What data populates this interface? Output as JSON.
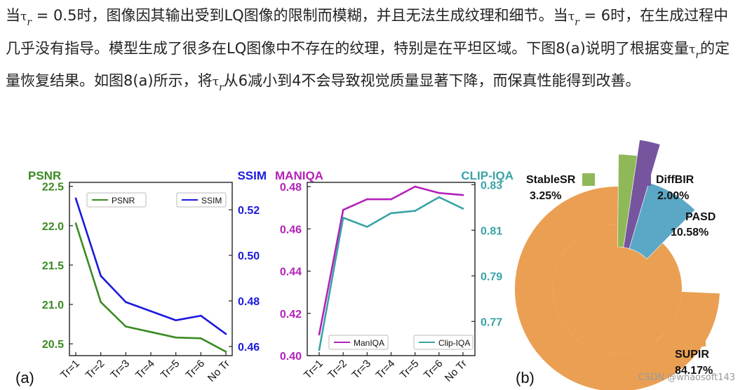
{
  "paragraph": {
    "p1": "当",
    "p2": " = 0.5时，图像因其输出受到LQ图像的限制而模糊，并且无法生成纹理和细节。当",
    "p3": " = 6时，在生成过程中几乎没有指导。模型生成了很多在LQ图像中不存在的纹理，特别是在平坦区域。下图8(a)说明了根据变量",
    "p4": "的定量恢复结果。如图8(a)所示，将",
    "p5": "从6减小到4不会导致视觉质量显著下降，而保真性能得到改善。",
    "tau_symbol": "τ",
    "tau_sub": "r"
  },
  "figure_labels": {
    "a": "(a)",
    "b": "(b)"
  },
  "watermark": "CSDN @whaosoft143",
  "colors": {
    "psnr": "#3a8a22",
    "ssim": "#1a1adc",
    "maniqa": "#b321b8",
    "clipiqa": "#3aa3a6",
    "stablesr": "#8fb858",
    "diffbir": "#76559e",
    "pasd": "#5ba7c6",
    "supir_outer": "#ea9f53",
    "supir_inner": "#cf8a45"
  },
  "chart_data": [
    {
      "type": "line",
      "panel": "(a) left",
      "categories": [
        "Tr=1",
        "Tr=2",
        "Tr=3",
        "Tr=4",
        "Tr=5",
        "Tr=6",
        "No Tr"
      ],
      "left_axis": {
        "title": "PSNR",
        "ylim": [
          20.35,
          22.55
        ],
        "ticks": [
          "20.5",
          "21.0",
          "21.5",
          "22.0",
          "22.5"
        ]
      },
      "right_axis": {
        "title": "SSIM",
        "ylim": [
          0.456,
          0.532
        ],
        "ticks": [
          "0.46",
          "0.48",
          "0.50",
          "0.52"
        ]
      },
      "series": [
        {
          "name": "PSNR",
          "axis": "left",
          "values": [
            22.03,
            21.03,
            20.72,
            20.65,
            20.58,
            20.57,
            20.4
          ]
        },
        {
          "name": "SSIM",
          "axis": "right",
          "values": [
            0.525,
            0.491,
            0.4795,
            0.4755,
            0.4715,
            0.4735,
            0.4655
          ]
        }
      ],
      "legend": [
        "PSNR",
        "SSIM"
      ],
      "legend_placement": "top"
    },
    {
      "type": "line",
      "panel": "(a) middle",
      "categories": [
        "Tr=1",
        "Tr=2",
        "Tr=3",
        "Tr=4",
        "Tr=5",
        "Tr=6",
        "No Tr"
      ],
      "left_axis": {
        "title": "MANIQA",
        "ylim": [
          0.4,
          0.482
        ],
        "ticks": [
          "0.40",
          "0.42",
          "0.44",
          "0.46",
          "0.48"
        ]
      },
      "right_axis": {
        "title": "CLIP-IQA",
        "ylim": [
          0.755,
          0.831
        ],
        "ticks": [
          "0.77",
          "0.79",
          "0.81",
          "0.83"
        ]
      },
      "series": [
        {
          "name": "ManIQA",
          "axis": "left",
          "values": [
            0.41,
            0.469,
            0.474,
            0.474,
            0.48,
            0.477,
            0.476
          ]
        },
        {
          "name": "Clip-IQA",
          "axis": "right",
          "values": [
            0.7575,
            0.8155,
            0.8115,
            0.8175,
            0.8185,
            0.8245,
            0.8195
          ]
        }
      ],
      "legend": [
        "ManIQA",
        "Clip-IQA"
      ],
      "legend_placement": "bottom"
    },
    {
      "type": "pie",
      "panel": "(b)",
      "slices": [
        {
          "name": "SUPIR",
          "value": 84.17,
          "label": "84.17%"
        },
        {
          "name": "StableSR",
          "value": 3.25,
          "label": "3.25%"
        },
        {
          "name": "DiffBIR",
          "value": 2.0,
          "label": "2.00%"
        },
        {
          "name": "PASD",
          "value": 10.58,
          "label": "10.58%"
        }
      ]
    }
  ]
}
